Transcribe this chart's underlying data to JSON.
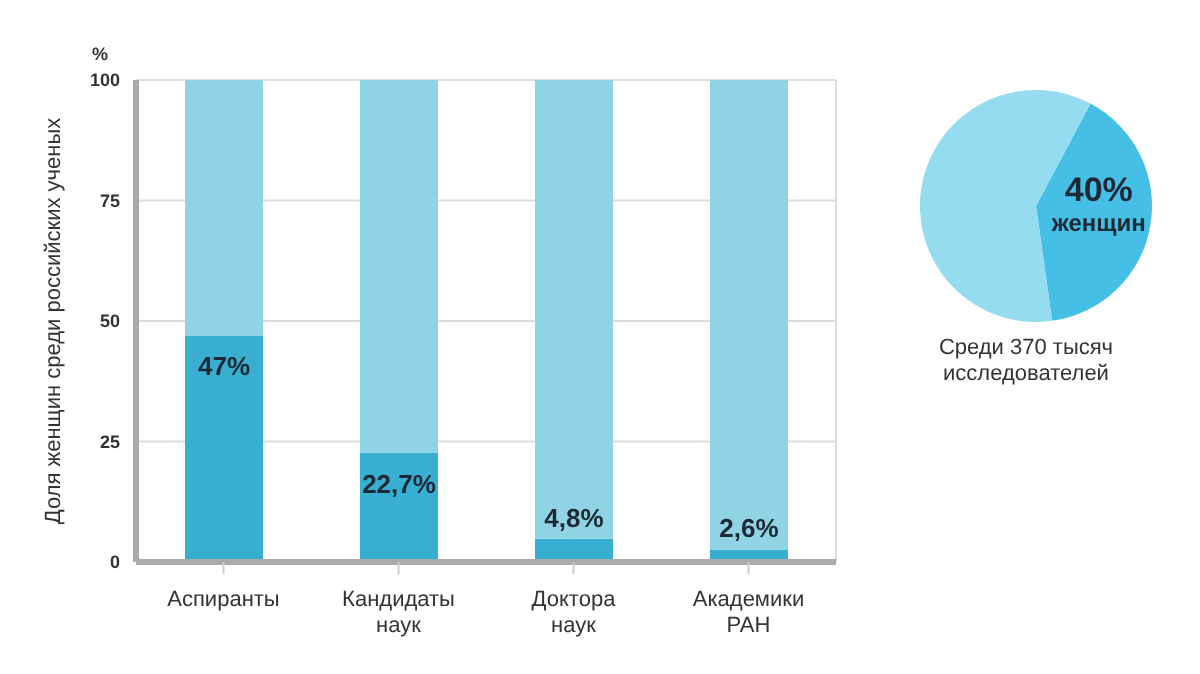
{
  "chart_data": [
    {
      "type": "bar",
      "ylabel": "Доля женщин среди российских ученых",
      "annotations": [
        "%"
      ],
      "categories": [
        "Аспиранты",
        "Кандидаты наук",
        "Доктора наук",
        "Академики РАН"
      ],
      "stacked": true,
      "grid": true,
      "ylim": [
        0,
        100
      ],
      "yticks": [
        0,
        25,
        50,
        75,
        100
      ],
      "series": [
        {
          "color": "#38afd0",
          "values": [
            47,
            22.7,
            4.8,
            2.6
          ],
          "value_labels": [
            "47%",
            "22,7%",
            "4,8%",
            "2,6%"
          ]
        },
        {
          "color": "#8fd3e4",
          "values": [
            53,
            77.3,
            95.2,
            97.4
          ]
        }
      ]
    },
    {
      "type": "pie",
      "categories": [
        "женщин",
        null
      ],
      "values": [
        40,
        60
      ],
      "value_labels": [
        "40%",
        null
      ],
      "colors": [
        "#45bfe6",
        "#96dcf0"
      ],
      "annotations": [
        "Среди 370 тысяч исследователей"
      ]
    }
  ]
}
